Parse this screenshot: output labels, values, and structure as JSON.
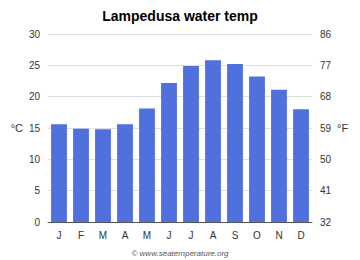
{
  "chart_data": {
    "type": "bar",
    "title": "Lampedusa water temp",
    "categories": [
      "J",
      "F",
      "M",
      "A",
      "M",
      "J",
      "J",
      "A",
      "S",
      "O",
      "N",
      "D"
    ],
    "values": [
      15.6,
      14.9,
      14.8,
      15.6,
      18.1,
      22.2,
      24.9,
      25.8,
      25.2,
      23.2,
      21.1,
      18.0
    ],
    "ylim": [
      0,
      30
    ],
    "yticks": [
      0,
      5,
      10,
      15,
      20,
      25,
      30
    ],
    "y2lim": [
      32,
      86
    ],
    "y2ticks": [
      32,
      41,
      50,
      59,
      68,
      77,
      86
    ],
    "ylabel": "°C",
    "y2label": "°F",
    "grid": true,
    "annotations": [
      "© www.seatemperature.org"
    ]
  }
}
